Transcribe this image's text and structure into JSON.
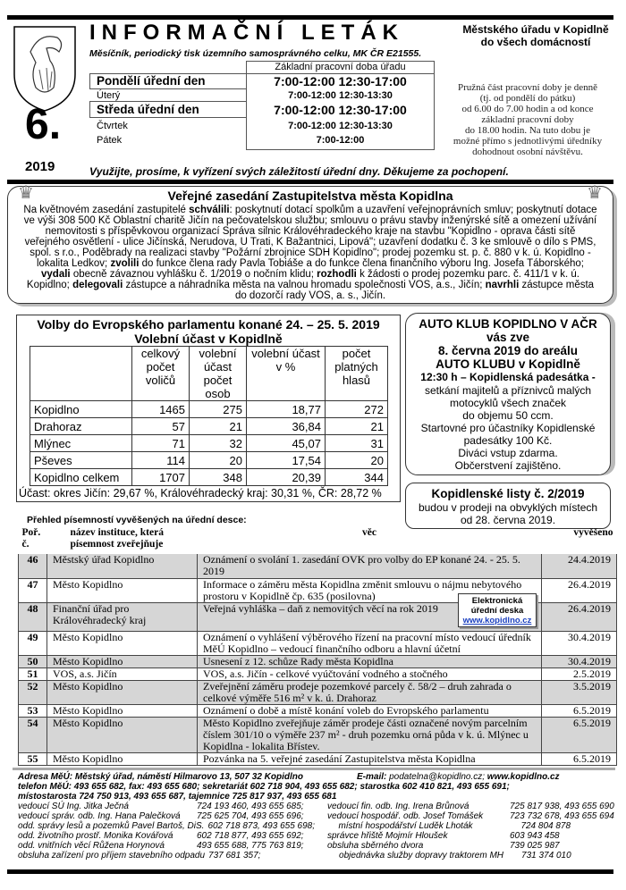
{
  "header": {
    "title": "INFORMAČNÍ LETÁK",
    "subtitle": "Měsíčník, periodický tisk územního samosprávného celku, MK ČR E21555.",
    "destination_line1": "Městského úřadu v Kopidlně",
    "destination_line2": "do všech domácností",
    "issue_number": "6.",
    "year": "2019",
    "hours_heading": "Základní pracovní doba úřadu",
    "hours": [
      {
        "day": "Pondělí   úřední den",
        "time": "7:00-12:00 12:30-17:00",
        "official": true
      },
      {
        "day": "Úterý",
        "time": "7:00-12:00 12:30-13:30",
        "official": false
      },
      {
        "day": "Středa   úřední den",
        "time": "7:00-12:00 12:30-17:00",
        "official": true
      },
      {
        "day": "Čtvrtek",
        "time": "7:00-12:00 12:30-13:30",
        "official": false
      },
      {
        "day": "Pátek",
        "time": "7:00-12:00",
        "official": false
      }
    ],
    "flex_note": [
      "Pružná část pracovní doby je denně",
      "(tj. od pondělí do pátku)",
      "od 6.00 do 7.00 hodin a od konce",
      "základní pracovní doby",
      "do 18.00 hodin. Na tuto dobu je",
      "možné přímo s jednotlivými úředníky",
      "dohodnout osobní návštěvu."
    ],
    "please": "Využijte, prosíme, k vyřízení svých záležitostí úřední dny.  Děkujeme za pochopení."
  },
  "meeting": {
    "title": "Veřejné zasedání Zastupitelstva města Kopidlna",
    "t1": "Na květnovém zasedání zastupitelé ",
    "b1": "schválili",
    "t2": ": poskytnutí dotací spolkům a uzavření veřejnoprávních smluv; poskytnutí dotace ve výši 308 500 Kč Oblastní charitě Jičín na pečovatelskou službu; smlouvu o právu stavby inženýrské sítě a omezení užívání nemovitosti s příspěvkovou organizací Správa silnic Královéhradeckého kraje na stavbu \"Kopidlno - oprava části sítě veřejného osvětlení - ulice Jičínská, Nerudova, U Trati, K Bažantnici, Lipová\"; uzavření dodatku č. 3 ke smlouvě o dílo s PMS, spol. s r.o., Poděbrady na realizaci stavby \"Požární zbrojnice SDH Kopidlno\"; prodej pozemku st. p. č. 880 v k. ú. Kopidlno - lokalita Ledkov; ",
    "b2": "zvolili",
    "t3": " do funkce člena rady Pavla Tobiáše a do funkce člena finančního výboru Ing. Josefa Táborského; ",
    "b3": "vydali",
    "t4": " obecně závaznou vyhlášku č. 1/2019 o nočním klidu; ",
    "b4": "rozhodli",
    "t5": " k žádosti o prodej pozemku parc. č. 411/1 v k. ú. Kopidlno; ",
    "b5": "delegovali",
    "t6": " zástupce a náhradníka města na valnou hromadu společnosti VOS, a.s., Jičín; ",
    "b6": "navrhli",
    "t7": " zástupce města do dozorčí rady VOS, a. s., Jičín."
  },
  "elections": {
    "title": "Volby do Evropského parlamentu konané 24. – 25. 5. 2019",
    "subtitle": "Volební účast v Kopidlně",
    "columns": [
      "celkový počet voličů",
      "volební účast počet osob",
      "volební účast v %",
      "počet platných hlasů"
    ],
    "rows": [
      [
        "Kopidlno",
        "1465",
        "275",
        "18,77",
        "272"
      ],
      [
        "Drahoraz",
        "57",
        "21",
        "36,84",
        "21"
      ],
      [
        "Mlýnec",
        "71",
        "32",
        "45,07",
        "31"
      ],
      [
        "Pševes",
        "114",
        "20",
        "17,54",
        "20"
      ],
      [
        "Kopidlno celkem",
        "1707",
        "348",
        "20,39",
        "344"
      ]
    ],
    "turnout": "Účast: okres Jičín: 29,67 %, Královéhradecký kraj: 30,31 %, ČR: 28,72 %"
  },
  "autoklub": {
    "bold": [
      "AUTO KLUB KOPIDLNO V AČR",
      "vás zve",
      "8. června 2019 do areálu",
      "AUTO KLUBU v Kopidlně",
      "12:30 h – Kopidlenská padesátka -"
    ],
    "lines": [
      "setkání majitelů a příznivců malých",
      "motocyklů všech značek",
      "do objemu 50 ccm.",
      "Startovné pro účastníky Kopidlenské",
      "padesátky 100 Kč.",
      "Diváci vstup zdarma.",
      "Občerstvení zajištěno."
    ]
  },
  "listy": {
    "title": "Kopidlenské listy č. 2/2019",
    "line1": "budou v prodeji na obvyklých místech",
    "line2": "od 28. června 2019."
  },
  "board": {
    "heading": "Přehled písemností vyvěšených na úřední desce:",
    "columns": [
      "Poř. č.",
      "název instituce, která písemnost zveřejňuje",
      "věc",
      "vyvěšeno"
    ],
    "rows": [
      {
        "no": "46",
        "inst": "Městský úřad Kopidlno",
        "subject": "Oznámení o svolání 1. zasedání OVK pro volby do EP konané 24. - 25. 5. 2019",
        "date": "24.4.2019",
        "shaded": true
      },
      {
        "no": "47",
        "inst": "Město Kopidlno",
        "subject": "Informace o záměru města Kopidlna změnit smlouvu o nájmu nebytového prostoru v Kopidlně čp. 635 (posilovna)",
        "date": "26.4.2019",
        "shaded": false
      },
      {
        "no": "48",
        "inst": "Finanční úřad pro Královéhradecký kraj",
        "subject": "Veřejná vyhláška – daň z nemovitých věcí na rok 2019",
        "date": "26.4.2019",
        "shaded": true
      },
      {
        "no": "49",
        "inst": "Město Kopidlno",
        "subject": "Oznámení o vyhlášení výběrového řízení na pracovní místo vedoucí úředník MěÚ Kopidlno – vedoucí finančního odboru a hlavní účetní",
        "date": "30.4.2019",
        "shaded": false
      },
      {
        "no": "50",
        "inst": "Město Kopidlno",
        "subject": "Usnesení z 12. schůze Rady města Kopidlna",
        "date": "30.4.2019",
        "shaded": true
      },
      {
        "no": "51",
        "inst": "VOS, a.s. Jičín",
        "subject": "VOS, a.s. Jičín - celkové vyúčtování vodného a stočného",
        "date": "2.5.2019",
        "shaded": false
      },
      {
        "no": "52",
        "inst": "Město Kopidlno",
        "subject": "Zveřejnění záměru prodeje pozemkové parcely č. 58/2 – druh zahrada o celkové výměře 516 m² v k. ú. Drahoraz",
        "date": "3.5.2019",
        "shaded": true
      },
      {
        "no": "53",
        "inst": "Město Kopidlno",
        "subject": "Oznámení o době a místě konání voleb do Evropského parlamentu",
        "date": "6.5.2019",
        "shaded": false
      },
      {
        "no": "54",
        "inst": "Město Kopidlno",
        "subject": "Město Kopidlno zveřejňuje záměr prodeje části označené novým parcelním číslem 301/10 o výměře 237 m² - druh pozemku orná půda v k. ú. Mlýnec u Kopidlna - lokalita Břístev.",
        "date": "6.5.2019",
        "shaded": true
      },
      {
        "no": "55",
        "inst": "Město Kopidlno",
        "subject": "Pozvánka na 5. veřejné zasedání Zastupitelstva města Kopidlna",
        "date": "6.5.2019",
        "shaded": false
      }
    ],
    "edesk": {
      "line1": "Elektronická",
      "line2": "úřední deska",
      "link": "www.kopidlno.cz"
    }
  },
  "footer": {
    "address": "Adresa MěÚ: Městský úřad, náměstí Hilmarovo 13, 507 32 Kopidlno",
    "email_label": "E-mail:",
    "email": " podatelna@kopidlno.cz; ",
    "web": "www.kopidlno.cz",
    "phones1": "telefon MěÚ: 493 655 682, fax: 493 655 680; sekretariát 602 718 904, 493 655 682; starostka 602 410 821, 493 655 691;",
    "phones2": "místostarosta 724  750 913, 493 655 687, tajemnice 725 817 937, 493 655 681",
    "contacts": [
      [
        "vedoucí SÚ Ing. Jitka Ječná",
        "724 193 460, 493 655 685;",
        "vedoucí fin. odb. Ing. Irena Brůnová",
        "725 817 938, 493 655 690"
      ],
      [
        "vedoucí správ. odb. Ing. Hana Palečková",
        "725 625 704, 493 655 696;",
        "vedoucí hospodář. odb. Josef Tomášek",
        "723 732 678, 493 655 694"
      ],
      [
        "odd. správy lesů a pozemků Pavel Bartoš, DiS.",
        "602 718 873, 493 655 698;",
        "místní hospodářství Luděk Lhoták",
        "724 804 878"
      ],
      [
        "odd. životního prostř. Monika Kovářová",
        "602 718 877, 493 655 692;",
        "správce hřiště Mojmír Hloušek",
        "603 943 458"
      ],
      [
        "odd. vnitřních věcí Růžena Horynová",
        "493 655 688, 775 763 819;",
        "obsluha sběrného dvora",
        "739 025 987"
      ],
      [
        "obsluha zařízení pro příjem stavebního odpadu",
        "737 681 357;",
        "objednávka služby dopravy traktorem MH",
        "731 374 010"
      ]
    ]
  }
}
